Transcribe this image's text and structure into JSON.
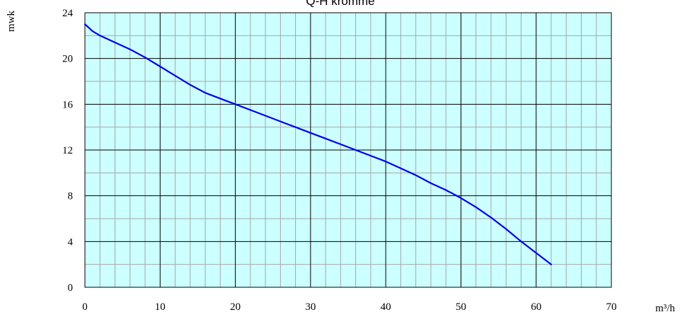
{
  "chart_data": {
    "type": "line",
    "title": "Q-H kromme",
    "xlabel": "m³/h",
    "ylabel": "mwk",
    "xlim": [
      0,
      70
    ],
    "ylim": [
      0,
      24
    ],
    "x_ticks": [
      0,
      10,
      20,
      30,
      40,
      50,
      60,
      70
    ],
    "y_ticks": [
      0,
      4,
      8,
      12,
      16,
      20,
      24
    ],
    "x_minor_step": 2,
    "y_minor_step": 2,
    "grid": true,
    "series": [
      {
        "x": [
          0,
          0.5,
          1,
          2,
          4,
          6,
          8,
          10,
          12,
          14,
          16,
          18,
          20,
          22,
          24,
          26,
          28,
          30,
          32,
          34,
          36,
          38,
          40,
          42,
          44,
          46,
          48,
          50,
          52,
          54,
          56,
          58,
          60,
          62
        ],
        "values": [
          23.0,
          22.7,
          22.4,
          22.0,
          21.4,
          20.8,
          20.1,
          19.3,
          18.5,
          17.7,
          17.0,
          16.5,
          16.0,
          15.5,
          15.0,
          14.5,
          14.0,
          13.5,
          13.0,
          12.5,
          12.0,
          11.5,
          11.0,
          10.4,
          9.8,
          9.1,
          8.5,
          7.8,
          7.0,
          6.1,
          5.1,
          4.0,
          3.0,
          2.0
        ]
      }
    ]
  },
  "colors": {
    "plot_background": "#ccffff",
    "major_grid": "#000000",
    "minor_grid": "#a6a6a6",
    "curve": "#0000ee",
    "text": "#000000"
  }
}
